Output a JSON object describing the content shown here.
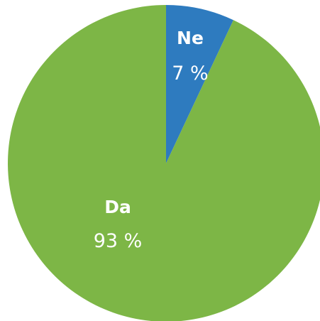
{
  "chart_data": {
    "type": "pie",
    "title": "",
    "categories": [
      "Ne",
      "Da"
    ],
    "values": [
      7,
      93
    ],
    "value_labels": [
      "7 %",
      "93 %"
    ],
    "colors": [
      "#2e7bbf",
      "#7db646"
    ],
    "start": "12 o'clock",
    "direction": "clockwise",
    "legend": "none"
  }
}
